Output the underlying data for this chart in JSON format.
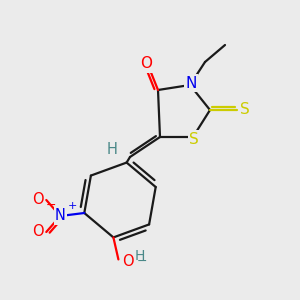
{
  "bg_color": "#ebebeb",
  "bond_color": "#1a1a1a",
  "atom_colors": {
    "O": "#ff0000",
    "N": "#0000ee",
    "S": "#cccc00",
    "H": "#4a8888",
    "C": "#1a1a1a"
  },
  "figsize": [
    3.0,
    3.0
  ],
  "dpi": 100
}
